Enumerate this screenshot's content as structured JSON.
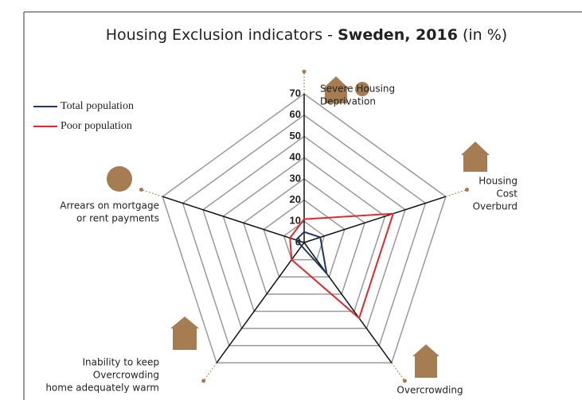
{
  "chart_data": {
    "type": "radar",
    "title": {
      "prefix": "Housing Exclusion indicators - ",
      "bold": "Sweden, 2016",
      "suffix": " (in %)"
    },
    "categories": [
      [
        "Severe Housing",
        "Deprivation"
      ],
      [
        "Housing",
        "Cost",
        "Overburd"
      ],
      [
        "Overcrowding"
      ],
      [
        "Inability to keep",
        "Overcrowding",
        "home adequately warm"
      ],
      [
        "Arrears on mortgage",
        "or rent payments"
      ]
    ],
    "series": [
      {
        "name": "Total population",
        "color": "#1f3a5f",
        "values": [
          5,
          8,
          18,
          2,
          4
        ]
      },
      {
        "name": "Poor population",
        "color": "#e0282e",
        "values": [
          11,
          44,
          44,
          10,
          7
        ]
      }
    ],
    "ylim": [
      0,
      70
    ],
    "yticks": [
      0,
      10,
      20,
      30,
      40,
      50,
      60,
      70
    ],
    "grid": true,
    "legend": "top-left"
  }
}
